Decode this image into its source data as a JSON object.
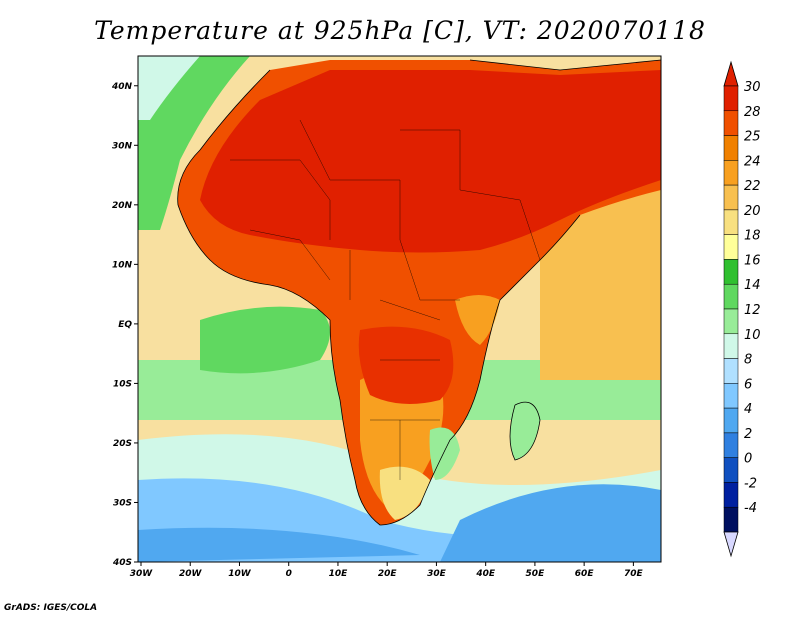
{
  "title": "Temperature at 925hPa [C], VT: 2020070118",
  "credit": "GrADS: IGES/COLA",
  "map": {
    "lon_range": [
      -30,
      75
    ],
    "lat_range": [
      -40,
      45
    ],
    "x_ticks": [
      "30W",
      "20W",
      "10W",
      "0",
      "10E",
      "20E",
      "30E",
      "40E",
      "50E",
      "60E",
      "70E"
    ],
    "y_ticks": [
      "40N",
      "30N",
      "20N",
      "10N",
      "EQ",
      "10S",
      "20S",
      "30S",
      "40S"
    ],
    "ocean_color": "#d0f0ff",
    "land_hot_color": "#e02000"
  },
  "colorbar": {
    "labels": [
      "30",
      "28",
      "25",
      "24",
      "22",
      "20",
      "18",
      "16",
      "14",
      "12",
      "10",
      "8",
      "6",
      "4",
      "2",
      "0",
      "-2",
      "-4"
    ],
    "colors": [
      "#e02000",
      "#f05000",
      "#f08000",
      "#f8a020",
      "#f8c050",
      "#f8e080",
      "#ffff99",
      "#30c030",
      "#60d860",
      "#98ec98",
      "#d0f8e8",
      "#b0e0ff",
      "#80c8ff",
      "#50a8f0",
      "#3080e0",
      "#1050c0",
      "#0020a0",
      "#001060"
    ],
    "top_arrow_color": "#e02000",
    "bottom_arrow_color": "#d8d8ff"
  }
}
